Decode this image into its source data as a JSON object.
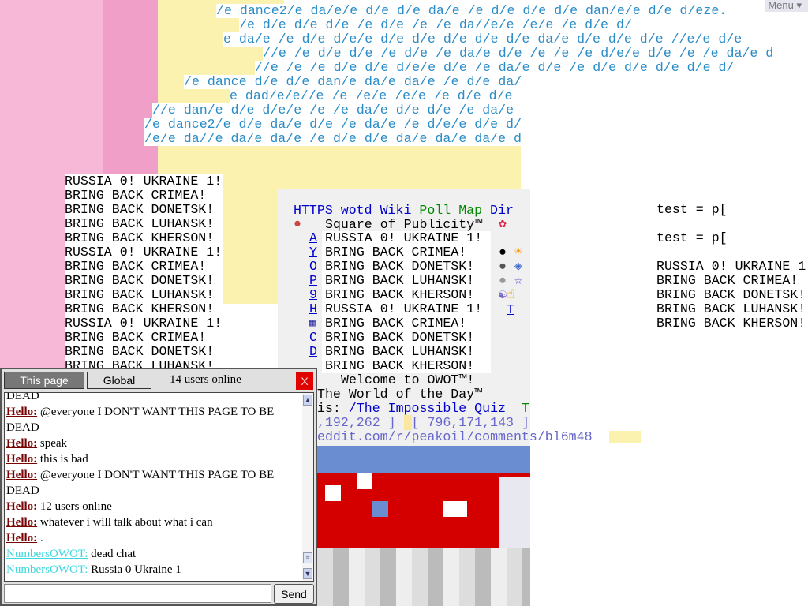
{
  "menu_label": "Menu",
  "top_lines": [
    "/e dance2/e da/e/e d/e d/e da/e /e d/e d/e d/e dan/e/e d/e d/eze.",
    "/e d/e d/e d/e /e d/e /e /e da//e/e /e/e /e d/e d/",
    "e da/e /e d/e d/e/e d/e d/e d/e d/e d/e da/e d/e d/e d/e //e/e d/e",
    "//e /e d/e d/e /e d/e /e da/e d/e /e /e /e d/e/e d/e /e /e da/e d",
    "//e /e /e d/e d/e d/e/e d/e /e da/e d/e /e d/e d/e d/e d/e d/",
    "/e dance d/e d/e dan/e da/e da/e /e d/e da/",
    "e dad/e/e//e /e /e/e /e/e /e d/e d/e",
    "//e dan/e d/e d/e/e /e /e da/e d/e d/e /e da/e",
    "/e dance2/e d/e da/e d/e /e da/e /e d/e/e d/e d/",
    "/e/e da//e da/e da/e /e d/e d/e da/e da/e da/e d"
  ],
  "left_column": [
    "RUSSIA 0! UKRAINE 1!",
    "BRING BACK CRIMEA!",
    "BRING BACK DONETSK!",
    "BRING BACK LUHANSK!",
    "BRING BACK KHERSON!",
    "RUSSIA 0! UKRAINE 1!",
    "BRING BACK CRIMEA!",
    "BRING BACK DONETSK!",
    "BRING BACK LUHANSK!",
    "BRING BACK KHERSON!",
    "RUSSIA 0! UKRAINE 1!",
    "BRING BACK CRIMEA!",
    "BRING BACK DONETSK!",
    "BRING BACK LUHANSK!"
  ],
  "right_column": [
    "test = p[",
    "",
    "test = p[",
    "",
    "RUSSIA 0! UKRAINE 1",
    "BRING BACK CRIMEA!",
    "BRING BACK DONETSK!",
    "BRING BACK LUHANSK!",
    "BRING BACK KHERSON!"
  ],
  "nav_links": [
    "HTTPS",
    "wotd",
    "Wiki",
    "Poll",
    "Map",
    "Dir"
  ],
  "square_title": "Square of Publicity™",
  "square_letters": [
    "A",
    "Y",
    "O",
    "P",
    "9",
    "H",
    "",
    "C",
    "D",
    ""
  ],
  "square_lines": [
    "RUSSIA 0! UKRAINE 1!",
    "BRING BACK CRIMEA!",
    "BRING BACK DONETSK!",
    "BRING BACK LUHANSK!",
    "BRING BACK KHERSON!",
    "RUSSIA 0! UKRAINE 1!",
    "BRING BACK CRIMEA!",
    "BRING BACK DONETSK!",
    "BRING BACK LUHANSK!",
    "BRING BACK KHERSON!"
  ],
  "side_T": "T",
  "welcome": "Welcome to OWOT™!",
  "wotd_line": "The World of the Day™",
  "wotd_prefix": "is: ",
  "wotd_link": "/The_Impossible_Quiz",
  "wotd_T": "T",
  "coords_a": ",192,262 ]",
  "coords_b": "[ 796,171,143 ]",
  "reddit_line": "eddit.com/r/peakoil/comments/bl6m48",
  "chat": {
    "tab_this_page": "This page",
    "tab_global": "Global",
    "users_online": "14 users online",
    "close_label": "X",
    "send_label": "Send",
    "input_value": "",
    "messages": [
      {
        "user": "",
        "text": "DEAD"
      },
      {
        "user": "Hello:",
        "text": "@everyone I DON'T WANT THIS PAGE TO BE DEAD"
      },
      {
        "user": "Hello:",
        "text": "speak"
      },
      {
        "user": "Hello:",
        "text": "this is bad"
      },
      {
        "user": "Hello:",
        "text": "@everyone I DON'T WANT THIS PAGE TO BE DEAD"
      },
      {
        "user": "Hello:",
        "text": "12 users online"
      },
      {
        "user": "Hello:",
        "text": "whatever i will talk about what i can"
      },
      {
        "user": "Hello:",
        "text": "."
      },
      {
        "user": "NumbersOWOT:",
        "text": "dead chat"
      },
      {
        "user": "NumbersOWOT:",
        "text": "Russia 0 Ukraine 1"
      }
    ]
  },
  "colors": {
    "text_blue": "#2a8cc8",
    "pink": "#f4b4d4",
    "yellow": "#faf0a8",
    "chat_user": "#770000",
    "chat_user2": "#3cd8e0",
    "close_red": "#e00000"
  }
}
